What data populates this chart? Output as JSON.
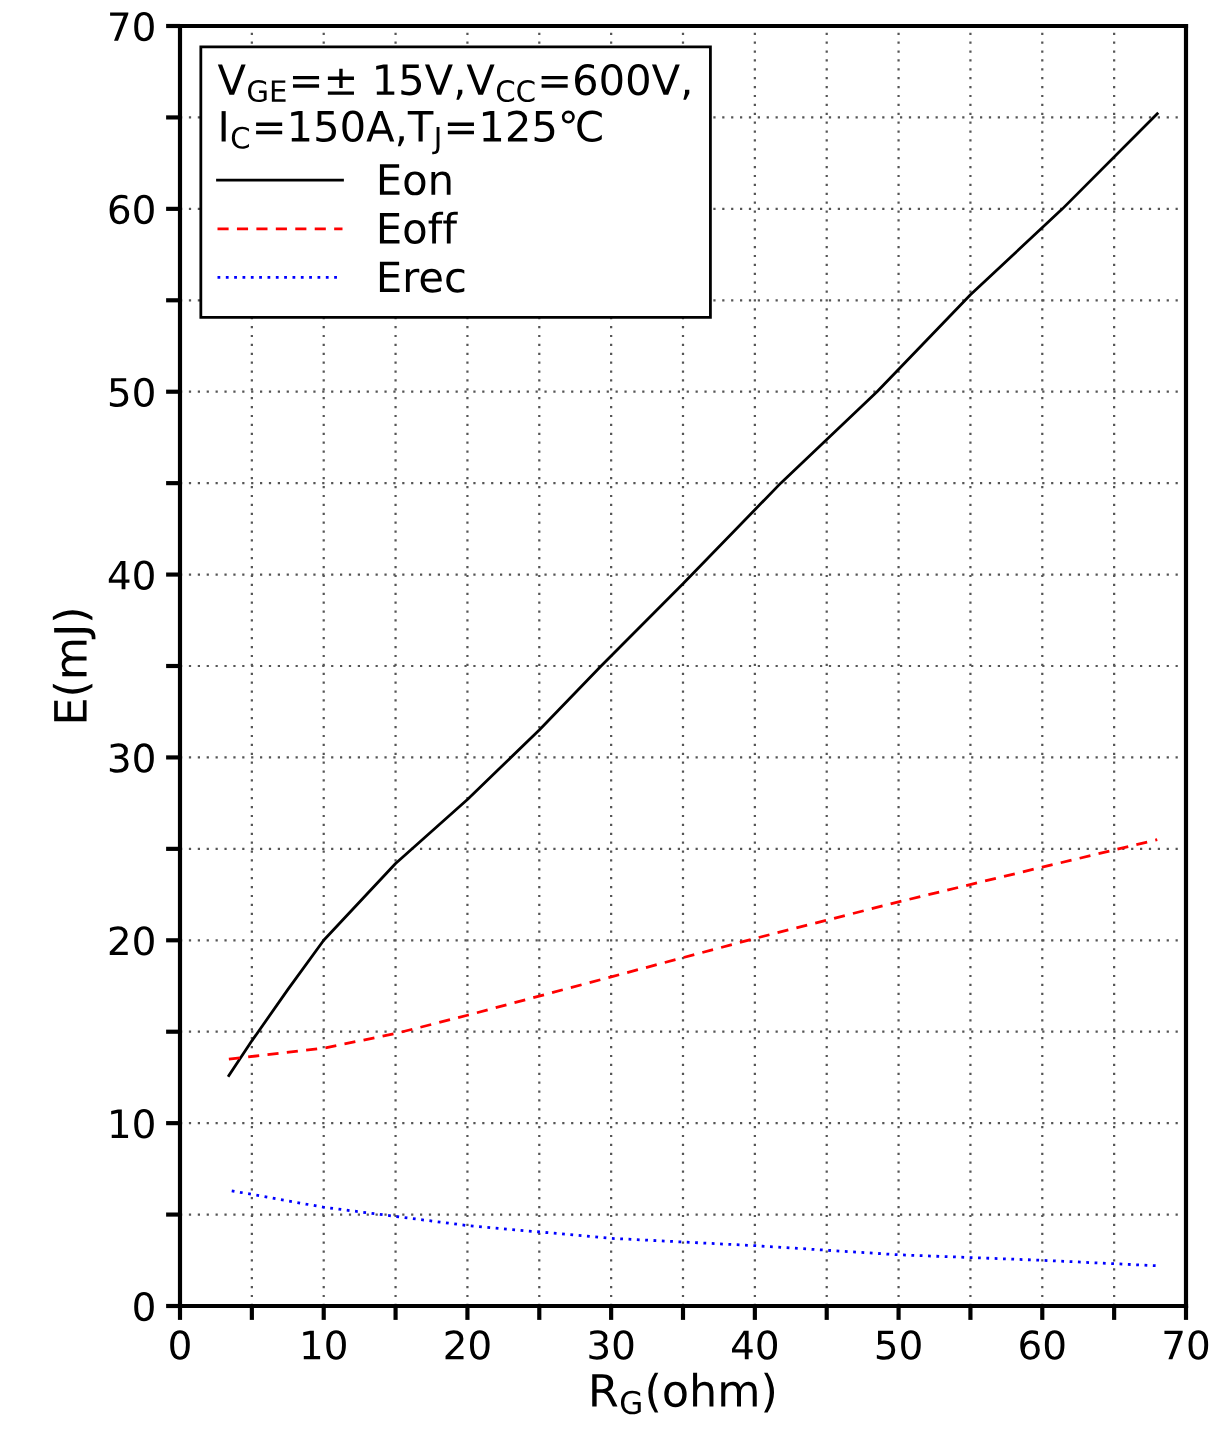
{
  "chart_data": {
    "type": "line",
    "xlabel": "R$_{G}$(ohm)",
    "ylabel": "E(mJ)",
    "legend_title": "V$_{GE}$=± 15V,V$_{CC}$=600V,\nI$_{C}$=150A,T$_{J}$=125℃",
    "xlim": [
      0,
      70
    ],
    "ylim": [
      0,
      70
    ],
    "xticks": [
      0,
      {
        "value": 5,
        "label": null
      },
      10,
      {
        "value": 15,
        "label": null
      },
      20,
      {
        "value": 25,
        "label": null
      },
      30,
      {
        "value": 35,
        "label": null
      },
      40,
      {
        "value": 45,
        "label": null
      },
      50,
      {
        "value": 55,
        "label": null
      },
      60,
      {
        "value": 65,
        "label": null
      },
      70
    ],
    "yticks": [
      0,
      {
        "value": 5,
        "label": null
      },
      10,
      {
        "value": 15,
        "label": null
      },
      20,
      {
        "value": 25,
        "label": null
      },
      30,
      {
        "value": 35,
        "label": null
      },
      40,
      {
        "value": 45,
        "label": null
      },
      50,
      {
        "value": 55,
        "label": null
      },
      60,
      {
        "value": 65,
        "label": null
      },
      70
    ],
    "grid": true,
    "legend": "top left",
    "series": [
      {
        "name": "Eon",
        "color": "#000000",
        "line_style": "solid",
        "x": [
          3.4,
          5,
          7.5,
          10,
          15,
          20,
          25,
          29.3,
          35,
          41.8,
          48.5,
          55,
          61.4,
          68
        ],
        "values": [
          12.6,
          14.5,
          17.3,
          20,
          24.2,
          27.7,
          31.5,
          35,
          39.5,
          45,
          50,
          55.3,
          60,
          65.2
        ]
      },
      {
        "name": "Eoff",
        "color": "#ff0000",
        "line_style": "dashed",
        "x": [
          3.4,
          10,
          15,
          20,
          30,
          40,
          50,
          60,
          68
        ],
        "values": [
          13.5,
          14.1,
          14.9,
          15.9,
          18,
          20.1,
          22.1,
          24,
          25.5
        ]
      },
      {
        "name": "Erec",
        "color": "#0000ff",
        "line_style": "dotted",
        "x": [
          3.6,
          10,
          20,
          30,
          40,
          50,
          60,
          68
        ],
        "values": [
          6.3,
          5.4,
          4.4,
          3.7,
          3.3,
          2.8,
          2.5,
          2.2
        ]
      }
    ]
  }
}
